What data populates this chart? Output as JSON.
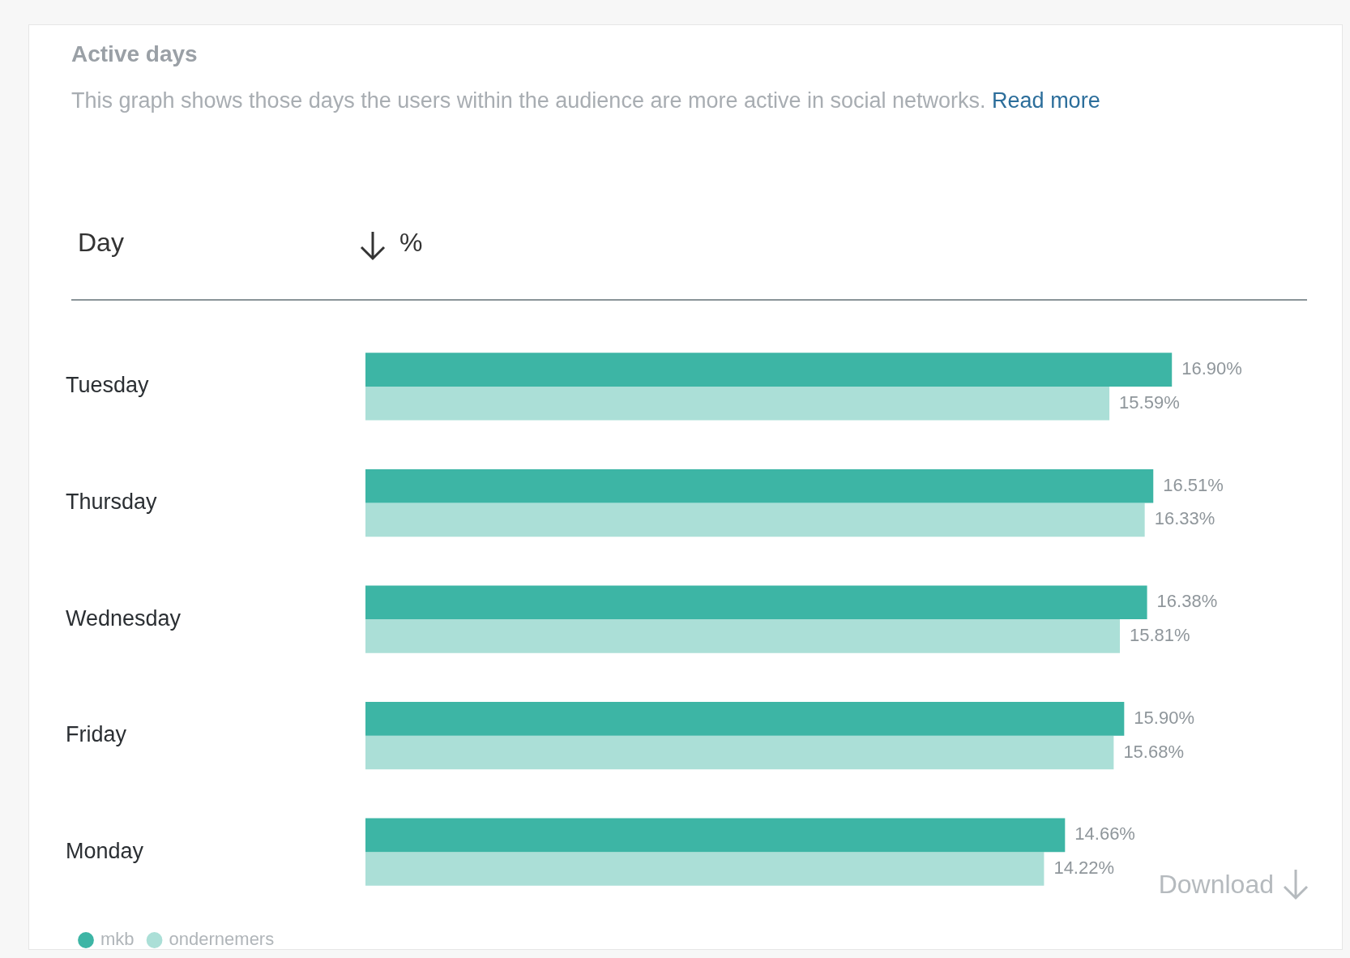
{
  "chart_data": {
    "type": "bar",
    "orientation": "horizontal",
    "title": "Active days",
    "subtitle": "This graph shows those days the users within the audience are more active in social networks.",
    "categories": [
      "Tuesday",
      "Thursday",
      "Wednesday",
      "Friday",
      "Monday"
    ],
    "series": [
      {
        "name": "mkb",
        "color": "#3db5a5",
        "values": [
          16.9,
          16.51,
          16.38,
          15.9,
          14.66
        ],
        "value_labels": [
          "16.90%",
          "16.51%",
          "16.38%",
          "15.90%",
          "14.66%"
        ]
      },
      {
        "name": "ondernemers",
        "color": "#abdfd7",
        "values": [
          15.59,
          16.33,
          15.81,
          15.68,
          14.22
        ],
        "value_labels": [
          "15.59%",
          "16.33%",
          "15.81%",
          "15.68%",
          "14.22%"
        ]
      }
    ],
    "tick_labels": "y",
    "legend": "bottom left",
    "annotations": [
      "Day",
      "%",
      "Read more",
      "Download"
    ]
  }
}
